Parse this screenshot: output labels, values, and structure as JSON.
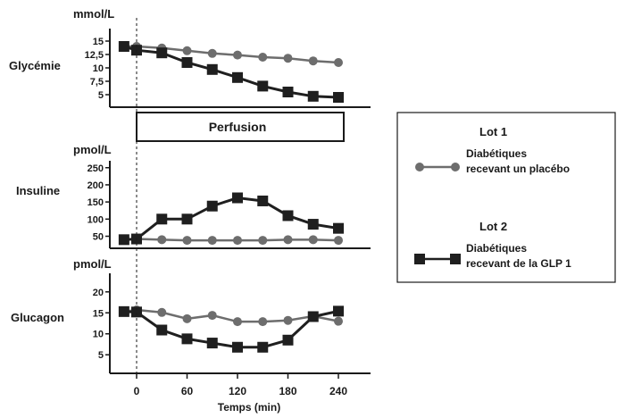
{
  "chart_data": [
    {
      "type": "line",
      "title": "Glycémie",
      "ylabel": "mmol/L",
      "ylim": [
        3,
        17
      ],
      "yticks": [
        "5",
        "7,5",
        "10",
        "12,5",
        "15"
      ],
      "ytick_values": [
        5,
        7.5,
        10,
        12.5,
        15
      ],
      "x": [
        -15,
        0,
        30,
        60,
        90,
        120,
        150,
        180,
        210,
        240
      ],
      "series": [
        {
          "name": "Lot 1",
          "values": [
            14,
            14,
            13.7,
            13.2,
            12.7,
            12.4,
            12,
            11.8,
            11.3,
            11
          ]
        },
        {
          "name": "Lot 2",
          "values": [
            14,
            13.3,
            12.8,
            11,
            9.7,
            8.2,
            6.6,
            5.5,
            4.7,
            4.5
          ]
        }
      ]
    },
    {
      "type": "line",
      "title": "Insuline",
      "ylabel": "pmol/L",
      "ylim": [
        20,
        265
      ],
      "yticks": [
        "50",
        "100",
        "150",
        "200",
        "250"
      ],
      "ytick_values": [
        50,
        100,
        150,
        200,
        250
      ],
      "x": [
        -15,
        0,
        30,
        60,
        90,
        120,
        150,
        180,
        210,
        240
      ],
      "series": [
        {
          "name": "Lot 1",
          "values": [
            40,
            42,
            40,
            38,
            38,
            38,
            38,
            40,
            40,
            38
          ]
        },
        {
          "name": "Lot 2",
          "values": [
            40,
            42,
            100,
            100,
            138,
            162,
            153,
            110,
            85,
            73
          ]
        }
      ]
    },
    {
      "type": "line",
      "title": "Glucagon",
      "ylabel": "pmol/L",
      "ylim": [
        1,
        24
      ],
      "yticks": [
        "5",
        "10",
        "15",
        "20"
      ],
      "ytick_values": [
        5,
        10,
        15,
        20
      ],
      "x": [
        -15,
        0,
        30,
        60,
        90,
        120,
        150,
        180,
        210,
        240
      ],
      "series": [
        {
          "name": "Lot 1",
          "values": [
            15.3,
            15.7,
            15.1,
            13.6,
            14.4,
            12.9,
            12.9,
            13.2,
            14.2,
            13
          ],
          "marker": "circle",
          "color": "#6d6d6d"
        },
        {
          "name": "Lot 2",
          "values": [
            15.3,
            15.2,
            10.9,
            8.8,
            7.8,
            6.8,
            6.8,
            8.5,
            14.1,
            15.4
          ],
          "marker": "square",
          "color": "#1f1f1f"
        }
      ],
      "xticks": [
        "0",
        "60",
        "120",
        "180",
        "240"
      ],
      "xtick_values": [
        0,
        60,
        120,
        180,
        240
      ],
      "xlabel": "Temps (min)"
    }
  ],
  "perfusion_label": "Perfusion",
  "perfusion_range": [
    0,
    240
  ],
  "legend": {
    "lot1_title": "Lot 1",
    "lot1_line1": "Diabétiques",
    "lot1_line2": "recevant un placébo",
    "lot2_title": "Lot 2",
    "lot2_line1": "Diabétiques",
    "lot2_line2": "recevant de la GLP 1"
  },
  "colors": {
    "lot1": "#6d6d6d",
    "lot2": "#1f1f1f",
    "axis": "#1a1a1a"
  }
}
